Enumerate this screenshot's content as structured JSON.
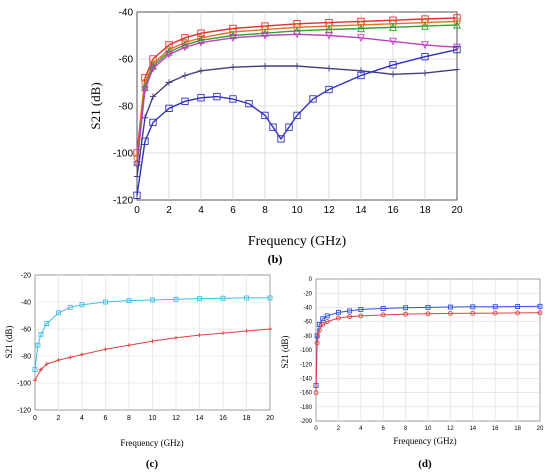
{
  "panels": [
    {
      "id": "b",
      "label": "(b)",
      "xlabel": "Frequency (GHz)",
      "ylabel": "S21 (dB)"
    },
    {
      "id": "c",
      "label": "(c)",
      "xlabel": "Frequency (GHz)",
      "ylabel": "S21 (dB)"
    },
    {
      "id": "d",
      "label": "(d)",
      "xlabel": "Frequency (GHz)",
      "ylabel": "S21 (dB)"
    }
  ],
  "chart_data": [
    {
      "panel": "(b)",
      "type": "line",
      "xlabel": "Frequency (GHz)",
      "ylabel": "S21 (dB)",
      "xlim": [
        0,
        20
      ],
      "ylim": [
        -120,
        -40
      ],
      "xticks": [
        0,
        2,
        4,
        6,
        8,
        10,
        12,
        14,
        16,
        18,
        20
      ],
      "yticks": [
        -40,
        -60,
        -80,
        -100,
        -120
      ],
      "grid": true,
      "series": [
        {
          "color": "#e03030",
          "marker": "square",
          "x": [
            0,
            0.5,
            1,
            2,
            3,
            4,
            6,
            8,
            10,
            12,
            14,
            16,
            18,
            20
          ],
          "y": [
            -100,
            -68,
            -60,
            -54,
            -51,
            -49,
            -47,
            -46,
            -45,
            -44.5,
            -44,
            -43.5,
            -43,
            -42.5
          ]
        },
        {
          "color": "#e07020",
          "marker": "circle",
          "x": [
            0,
            0.5,
            1,
            2,
            3,
            4,
            6,
            8,
            10,
            12,
            14,
            16,
            18,
            20
          ],
          "y": [
            -102,
            -70,
            -62,
            -56,
            -53,
            -51,
            -48.5,
            -47.5,
            -46.5,
            -46,
            -45.5,
            -45,
            -44.5,
            -44
          ]
        },
        {
          "color": "#30a030",
          "marker": "triangle",
          "x": [
            0,
            0.5,
            1,
            2,
            3,
            4,
            6,
            8,
            10,
            12,
            14,
            16,
            18,
            20
          ],
          "y": [
            -104,
            -72,
            -63,
            -57,
            -54,
            -52,
            -50,
            -49,
            -48,
            -47.5,
            -47,
            -46.5,
            -46,
            -45.5
          ]
        },
        {
          "color": "#c040c0",
          "marker": "triangle-down",
          "x": [
            0,
            0.5,
            1,
            2,
            3,
            4,
            6,
            8,
            10,
            12,
            14,
            16,
            18,
            20
          ],
          "y": [
            -105,
            -73,
            -64,
            -58,
            -55,
            -53,
            -51,
            -50,
            -49.5,
            -50,
            -51,
            -52.5,
            -54,
            -55
          ]
        },
        {
          "color": "#404080",
          "marker": "cross",
          "x": [
            0,
            0.5,
            1,
            2,
            3,
            4,
            6,
            8,
            10,
            12,
            14,
            16,
            18,
            20
          ],
          "y": [
            -110,
            -85,
            -76,
            -70,
            -67,
            -65,
            -63.5,
            -63,
            -63,
            -64,
            -65,
            -66.5,
            -66,
            -64.5
          ]
        },
        {
          "color": "#3030c0",
          "marker": "square",
          "x": [
            0,
            0.5,
            1,
            2,
            3,
            4,
            5,
            6,
            7,
            8,
            8.5,
            9,
            9.5,
            10,
            11,
            12,
            14,
            16,
            18,
            20
          ],
          "y": [
            -118,
            -95,
            -87,
            -81,
            -78,
            -76.5,
            -76,
            -77,
            -79,
            -84,
            -89,
            -94,
            -89,
            -84,
            -77,
            -73,
            -67,
            -62.5,
            -59,
            -56
          ]
        }
      ]
    },
    {
      "panel": "(c)",
      "type": "line",
      "xlabel": "Frequency (GHz)",
      "ylabel": "S21 (dB)",
      "xlim": [
        0,
        20
      ],
      "ylim": [
        -120,
        -20
      ],
      "xticks": [
        0,
        2,
        4,
        6,
        8,
        10,
        12,
        14,
        16,
        18,
        20
      ],
      "yticks": [
        -20,
        -40,
        -60,
        -80,
        -100,
        -120
      ],
      "grid": true,
      "series": [
        {
          "color": "#40c0e0",
          "marker": "square",
          "x": [
            0,
            0.25,
            0.5,
            1,
            2,
            3,
            4,
            6,
            8,
            10,
            12,
            14,
            16,
            18,
            20
          ],
          "y": [
            -90,
            -72,
            -64,
            -56,
            -48,
            -44,
            -42,
            -40,
            -39,
            -38.5,
            -38,
            -37.5,
            -37.2,
            -37,
            -37
          ]
        },
        {
          "color": "#e04040",
          "marker": "cross",
          "x": [
            0,
            0.5,
            1,
            2,
            3,
            4,
            6,
            8,
            10,
            12,
            14,
            16,
            18,
            20
          ],
          "y": [
            -98,
            -90,
            -86,
            -83,
            -81,
            -79,
            -75,
            -72,
            -69,
            -66.5,
            -64.5,
            -63,
            -61.5,
            -60
          ]
        }
      ]
    },
    {
      "panel": "(d)",
      "type": "line",
      "xlabel": "Frequency (GHz)",
      "ylabel": "S21 (dB)",
      "xlim": [
        0,
        20
      ],
      "ylim": [
        -200,
        0
      ],
      "xticks": [
        0,
        2,
        4,
        6,
        8,
        10,
        12,
        14,
        16,
        18,
        20
      ],
      "yticks": [
        0,
        -20,
        -40,
        -60,
        -80,
        -100,
        -120,
        -140,
        -160,
        -180,
        -200
      ],
      "grid": true,
      "series": [
        {
          "color": "#3050e0",
          "marker": "square",
          "x": [
            0,
            0.1,
            0.3,
            0.6,
            1,
            2,
            3,
            4,
            6,
            8,
            10,
            12,
            14,
            16,
            18,
            20
          ],
          "y": [
            -150,
            -80,
            -64,
            -56,
            -52,
            -47,
            -45,
            -43,
            -41.5,
            -40.5,
            -40,
            -39.5,
            -39.2,
            -39,
            -38.8,
            -38.5
          ]
        },
        {
          "color": "#e04040",
          "marker": "circle",
          "x": [
            0,
            0.1,
            0.3,
            0.6,
            1,
            2,
            3,
            4,
            6,
            8,
            10,
            12,
            14,
            16,
            18,
            20
          ],
          "y": [
            -160,
            -90,
            -72,
            -64,
            -60,
            -55,
            -53,
            -52,
            -50.5,
            -49.5,
            -49,
            -48.5,
            -48.2,
            -48,
            -47.8,
            -47.5
          ]
        }
      ]
    }
  ]
}
